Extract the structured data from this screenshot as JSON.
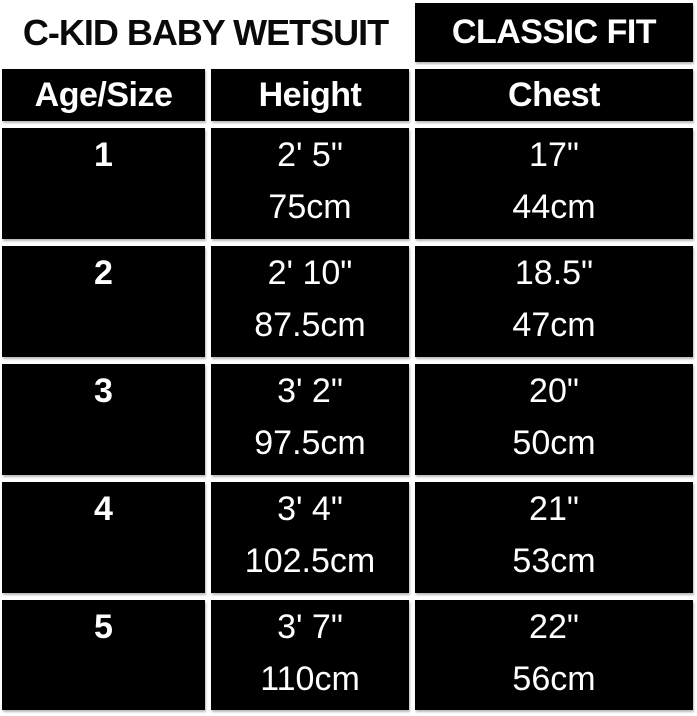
{
  "header": {
    "title": "C-KID BABY WETSUIT",
    "fit_label": "CLASSIC FIT"
  },
  "columns": [
    "Age/Size",
    "Height",
    "Chest"
  ],
  "rows": [
    {
      "age": "1",
      "height_imperial": "2' 5\"",
      "height_metric": "75cm",
      "chest_imperial": "17\"",
      "chest_metric": "44cm"
    },
    {
      "age": "2",
      "height_imperial": "2' 10\"",
      "height_metric": "87.5cm",
      "chest_imperial": "18.5\"",
      "chest_metric": "47cm"
    },
    {
      "age": "3",
      "height_imperial": "3' 2\"",
      "height_metric": "97.5cm",
      "chest_imperial": "20\"",
      "chest_metric": "50cm"
    },
    {
      "age": "4",
      "height_imperial": "3' 4\"",
      "height_metric": "102.5cm",
      "chest_imperial": "21\"",
      "chest_metric": "53cm"
    },
    {
      "age": "5",
      "height_imperial": "3' 7\"",
      "height_metric": "110cm",
      "chest_imperial": "22\"",
      "chest_metric": "56cm"
    }
  ],
  "colors": {
    "page_background": "#ffffff",
    "cell_background": "#000000",
    "cell_text": "#ffffff",
    "title_text": "#0a0a0a"
  },
  "chart_data": {
    "type": "table",
    "title": "C-KID BABY WETSUIT",
    "subtitle": "CLASSIC FIT",
    "columns": [
      "Age/Size",
      "Height",
      "Chest"
    ],
    "rows": [
      [
        "1",
        "2' 5\" / 75cm",
        "17\" / 44cm"
      ],
      [
        "2",
        "2' 10\" / 87.5cm",
        "18.5\" / 47cm"
      ],
      [
        "3",
        "3' 2\" / 97.5cm",
        "20\" / 50cm"
      ],
      [
        "4",
        "3' 4\" / 102.5cm",
        "21\" / 53cm"
      ],
      [
        "5",
        "3' 7\" / 110cm",
        "22\" / 56cm"
      ]
    ]
  }
}
